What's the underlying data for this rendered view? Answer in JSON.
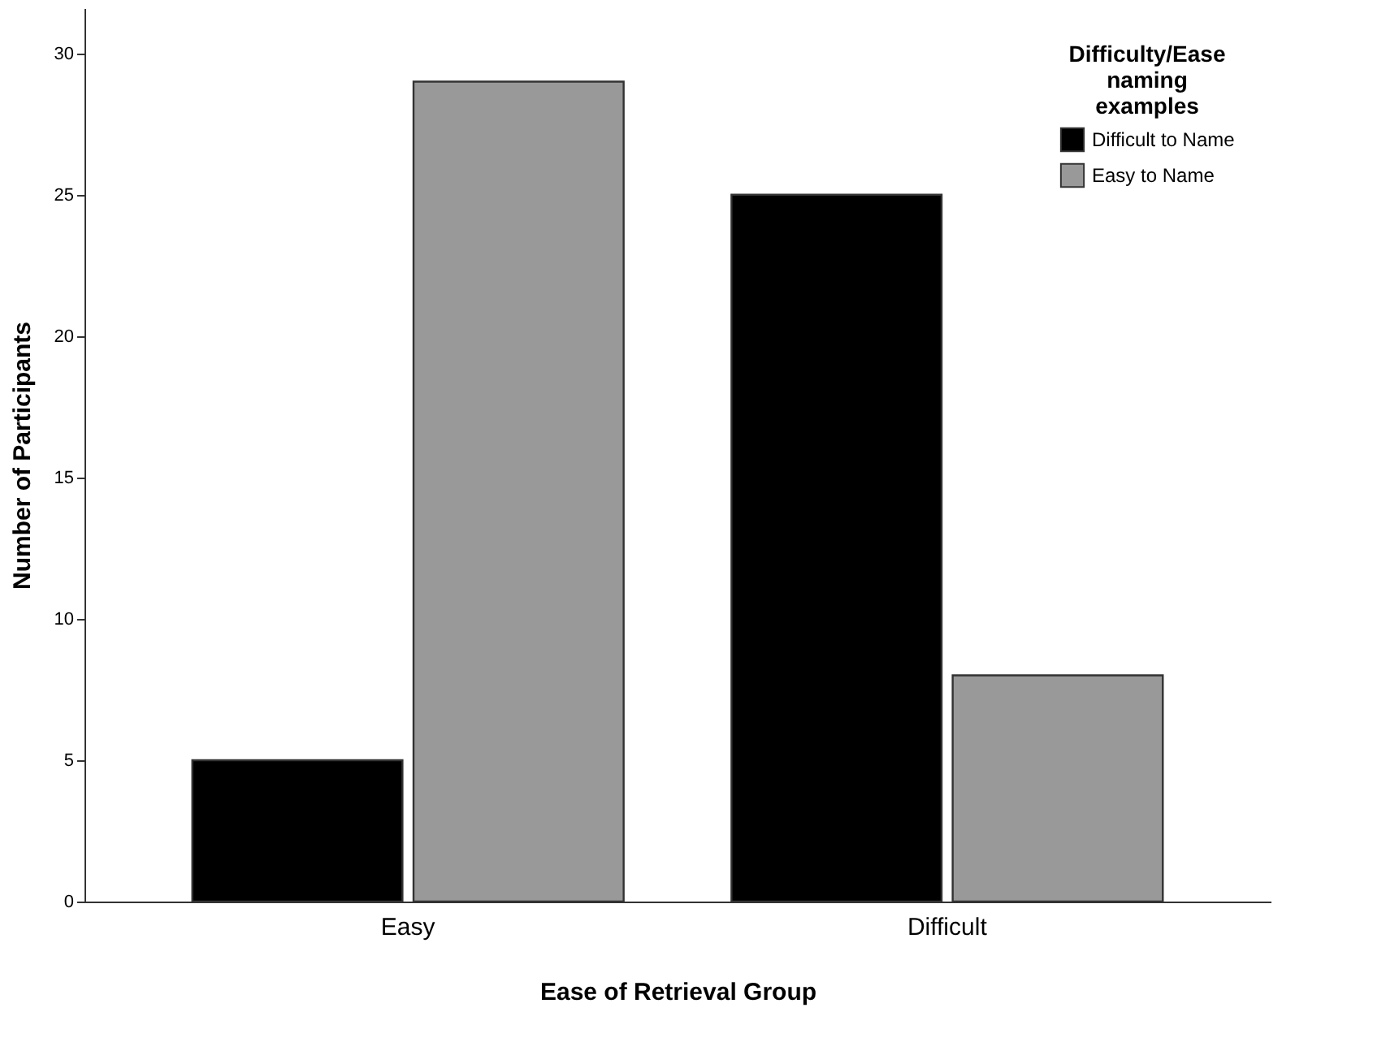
{
  "chart_data": {
    "type": "bar",
    "xlabel": "Ease of Retrieval Group",
    "ylabel": "Number of Participants",
    "legend_title": "Difficulty/Ease naming examples",
    "categories": [
      "Easy",
      "Difficult"
    ],
    "series": [
      {
        "name": "Difficult to Name",
        "color": "#000000",
        "values": [
          5,
          25
        ]
      },
      {
        "name": "Easy to Name",
        "color": "#999999",
        "values": [
          29,
          8
        ]
      }
    ],
    "ylim": [
      0,
      31.6
    ],
    "yticks": [
      0,
      5,
      10,
      15,
      20,
      25,
      30
    ],
    "grid": false,
    "legend": "top right"
  }
}
